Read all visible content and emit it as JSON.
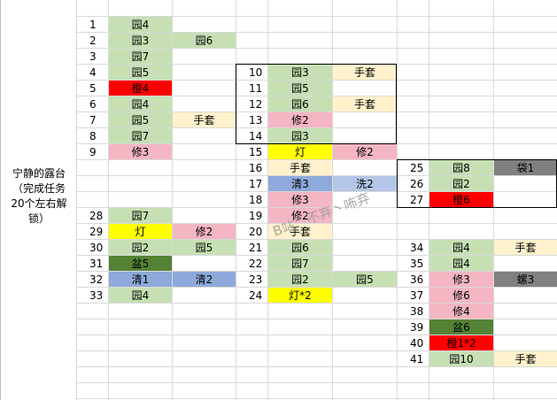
{
  "grid": {
    "section_label": "宁静的露台\n（完成任务\n20个左右解\n锁）",
    "colors": {
      "green": "#c6e0b4",
      "red": "#ff0000",
      "pink": "#f4b6c2",
      "cream": "#fff2cc",
      "yellow": "#ffff00",
      "blue": "#8ea9db",
      "lightblue": "#b4c6e7",
      "darkgreen": "#548235",
      "gray": "#808080",
      "white": "#ffffff"
    },
    "blocks": [
      {
        "rows": [
          {
            "num": "1",
            "cells": [
              {
                "text": "园4",
                "color": "green"
              }
            ]
          },
          {
            "num": "2",
            "cells": [
              {
                "text": "园3",
                "color": "green"
              },
              {
                "text": "园6",
                "color": "green"
              }
            ]
          },
          {
            "num": "3",
            "cells": [
              {
                "text": "园7",
                "color": "green"
              }
            ]
          },
          {
            "num": "4",
            "cells": [
              {
                "text": "园5",
                "color": "green"
              }
            ]
          },
          {
            "num": "5",
            "cells": [
              {
                "text": "橙4",
                "color": "red"
              }
            ]
          },
          {
            "num": "6",
            "cells": [
              {
                "text": "园4",
                "color": "green"
              }
            ]
          },
          {
            "num": "7",
            "cells": [
              {
                "text": "园5",
                "color": "green"
              },
              {
                "text": "手套",
                "color": "cream"
              }
            ]
          },
          {
            "num": "8",
            "cells": [
              {
                "text": "园7",
                "color": "green"
              }
            ]
          },
          {
            "num": "9",
            "cells": [
              {
                "text": "修3",
                "color": "pink"
              }
            ]
          }
        ]
      },
      {
        "rows": [
          {
            "num": "10",
            "cells": [
              {
                "text": "园3",
                "color": "green"
              },
              {
                "text": "手套",
                "color": "cream"
              }
            ]
          },
          {
            "num": "11",
            "cells": [
              {
                "text": "园5",
                "color": "green"
              }
            ]
          },
          {
            "num": "12",
            "cells": [
              {
                "text": "园6",
                "color": "green"
              },
              {
                "text": "手套",
                "color": "cream"
              }
            ]
          },
          {
            "num": "13",
            "cells": [
              {
                "text": "修2",
                "color": "pink"
              }
            ]
          },
          {
            "num": "14",
            "cells": [
              {
                "text": "园3",
                "color": "green"
              }
            ]
          },
          {
            "num": "15",
            "cells": [
              {
                "text": "灯",
                "color": "yellow"
              },
              {
                "text": "修2",
                "color": "pink"
              }
            ]
          },
          {
            "num": "16",
            "cells": [
              {
                "text": "手套",
                "color": "cream"
              }
            ]
          },
          {
            "num": "17",
            "cells": [
              {
                "text": "清3",
                "color": "blue"
              },
              {
                "text": "洗2",
                "color": "lightblue"
              }
            ]
          },
          {
            "num": "18",
            "cells": [
              {
                "text": "修3",
                "color": "pink"
              }
            ]
          },
          {
            "num": "19",
            "cells": [
              {
                "text": "修2",
                "color": "pink"
              }
            ]
          },
          {
            "num": "20",
            "cells": [
              {
                "text": "手套",
                "color": "cream"
              }
            ]
          },
          {
            "num": "21",
            "cells": [
              {
                "text": "园6",
                "color": "green"
              }
            ]
          },
          {
            "num": "22",
            "cells": [
              {
                "text": "园7",
                "color": "green"
              }
            ]
          },
          {
            "num": "23",
            "cells": [
              {
                "text": "园2",
                "color": "green"
              },
              {
                "text": "园5",
                "color": "green"
              }
            ]
          },
          {
            "num": "24",
            "cells": [
              {
                "text": "灯*2",
                "color": "yellow"
              }
            ]
          }
        ]
      },
      {
        "rows": [
          {
            "num": "25",
            "cells": [
              {
                "text": "园8",
                "color": "green"
              },
              {
                "text": "袋1",
                "color": "gray"
              }
            ]
          },
          {
            "num": "26",
            "cells": [
              {
                "text": "园2",
                "color": "green"
              }
            ]
          },
          {
            "num": "27",
            "cells": [
              {
                "text": "橙6",
                "color": "red"
              }
            ]
          }
        ]
      },
      {
        "rows": [
          {
            "num": "28",
            "cells": [
              {
                "text": "园7",
                "color": "green"
              }
            ]
          },
          {
            "num": "29",
            "cells": [
              {
                "text": "灯",
                "color": "yellow"
              },
              {
                "text": "修2",
                "color": "pink"
              }
            ]
          },
          {
            "num": "30",
            "cells": [
              {
                "text": "园2",
                "color": "green"
              },
              {
                "text": "园5",
                "color": "green"
              }
            ]
          },
          {
            "num": "31",
            "cells": [
              {
                "text": "盆5",
                "color": "darkgreen"
              }
            ]
          },
          {
            "num": "32",
            "cells": [
              {
                "text": "清1",
                "color": "blue"
              },
              {
                "text": "清2",
                "color": "blue"
              }
            ]
          },
          {
            "num": "33",
            "cells": [
              {
                "text": "园4",
                "color": "green"
              }
            ]
          }
        ]
      },
      {
        "rows": [
          {
            "num": "34",
            "cells": [
              {
                "text": "园4",
                "color": "green"
              },
              {
                "text": "手套",
                "color": "cream"
              }
            ]
          },
          {
            "num": "35",
            "cells": [
              {
                "text": "园4",
                "color": "green"
              }
            ]
          },
          {
            "num": "36",
            "cells": [
              {
                "text": "修3",
                "color": "pink"
              },
              {
                "text": "螺3",
                "color": "gray"
              }
            ]
          },
          {
            "num": "37",
            "cells": [
              {
                "text": "修6",
                "color": "pink"
              }
            ]
          },
          {
            "num": "38",
            "cells": [
              {
                "text": "修4",
                "color": "pink"
              }
            ]
          },
          {
            "num": "39",
            "cells": [
              {
                "text": "盆6",
                "color": "darkgreen"
              }
            ]
          },
          {
            "num": "40",
            "cells": [
              {
                "text": "橙1*2",
                "color": "red"
              }
            ]
          },
          {
            "num": "41",
            "cells": [
              {
                "text": "园10",
                "color": "green"
              },
              {
                "text": "手套",
                "color": "cream"
              }
            ]
          }
        ]
      }
    ],
    "watermark": "B站：不弃丶咘弃"
  }
}
